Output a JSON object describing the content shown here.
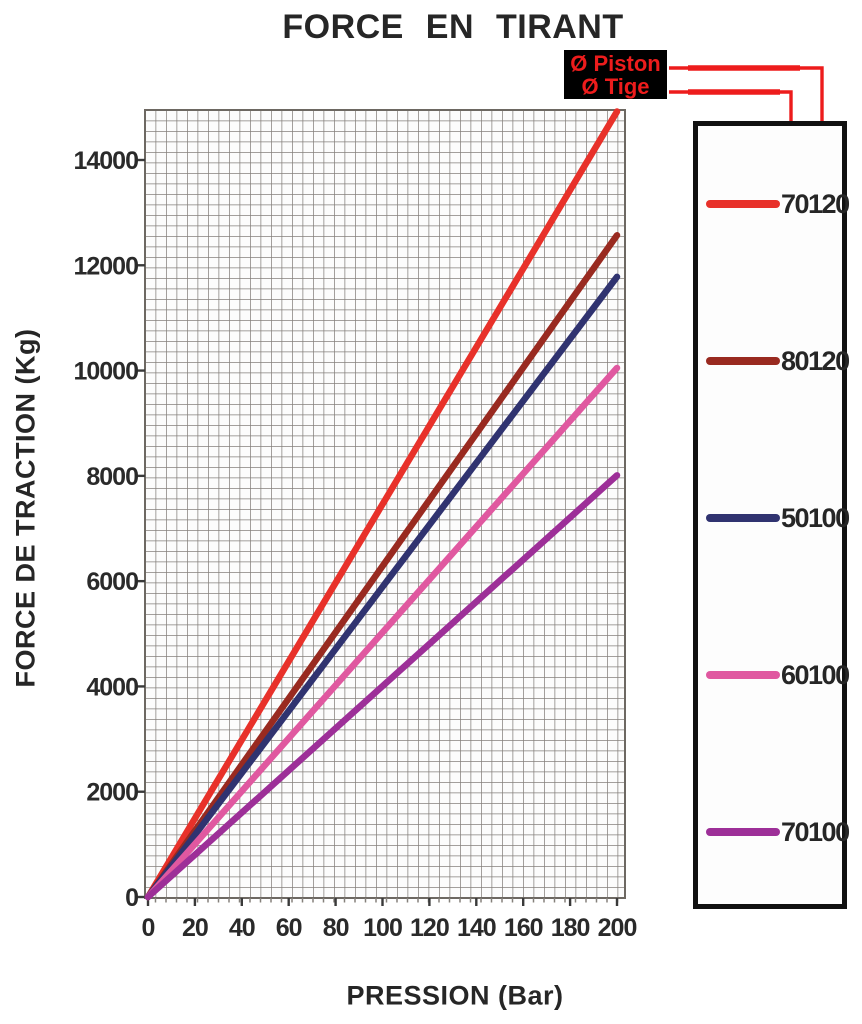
{
  "title": "FORCE  EN  TIRANT",
  "annotation": {
    "piston_label": "Ø Piston",
    "tige_label": "Ø Tige",
    "text_color": "#ed1c1c",
    "bg_color": "#000000"
  },
  "chart_data": {
    "type": "line",
    "title": "FORCE EN TIRANT",
    "xlabel": "PRESSION (Bar)",
    "ylabel": "FORCE DE TRACTION (Kg)",
    "xlim": [
      0,
      200
    ],
    "ylim": [
      0,
      15000
    ],
    "x_ticks": [
      0,
      20,
      40,
      60,
      80,
      100,
      120,
      140,
      160,
      180,
      200
    ],
    "y_ticks": [
      0,
      2000,
      4000,
      6000,
      8000,
      10000,
      12000,
      14000
    ],
    "grid": "fine square graph-paper mesh",
    "grid_color": "#85807b",
    "legend_position": "right",
    "x": [
      0,
      200
    ],
    "series": [
      {
        "name": "70120",
        "color": "#e8312a",
        "values": [
          0,
          14920
        ]
      },
      {
        "name": "80120",
        "color": "#992a20",
        "values": [
          0,
          12570
        ]
      },
      {
        "name": "50100",
        "color": "#303370",
        "values": [
          0,
          11780
        ]
      },
      {
        "name": "60100",
        "color": "#e058a0",
        "values": [
          0,
          10050
        ]
      },
      {
        "name": "70100",
        "color": "#9d2f98",
        "values": [
          0,
          8010
        ]
      }
    ]
  }
}
